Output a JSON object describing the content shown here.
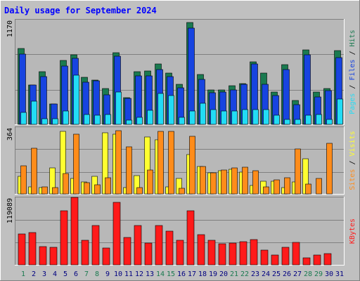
{
  "chart_data": [
    {
      "type": "bar",
      "title": "Daily usage for September 2024",
      "categories": [
        "1",
        "2",
        "3",
        "4",
        "5",
        "6",
        "7",
        "8",
        "9",
        "10",
        "11",
        "12",
        "13",
        "14",
        "15",
        "16",
        "17",
        "18",
        "19",
        "20",
        "21",
        "22",
        "23",
        "24",
        "25",
        "26",
        "27",
        "28",
        "29",
        "30",
        "31"
      ],
      "weekend_days": [
        1,
        7,
        8,
        14,
        15,
        21,
        22,
        28,
        29
      ],
      "y_max_label": "1170",
      "ylim": [
        0,
        1170
      ],
      "side_labels": [
        "Pages",
        "Files",
        "Hits"
      ],
      "series": [
        {
          "name": "Hits",
          "color": "#1a7a50",
          "values": [
            851,
            438,
            587,
            226,
            712,
            780,
            525,
            496,
            401,
            801,
            299,
            587,
            594,
            679,
            577,
            445,
            1141,
            555,
            387,
            387,
            430,
            452,
            701,
            577,
            365,
            664,
            270,
            836,
            358,
            401,
            825
          ]
        },
        {
          "name": "Files",
          "color": "#1744e0",
          "values": [
            786,
            438,
            533,
            226,
            655,
            737,
            474,
            488,
            328,
            758,
            292,
            540,
            540,
            611,
            533,
            409,
            1075,
            503,
            350,
            365,
            387,
            445,
            679,
            445,
            321,
            611,
            218,
            779,
            307,
            379,
            744
          ]
        },
        {
          "name": "Pages",
          "color": "#22dcf5",
          "values": [
            137,
            256,
            65,
            65,
            153,
            547,
            110,
            102,
            110,
            365,
            51,
            80,
            159,
            343,
            321,
            80,
            153,
            233,
            162,
            146,
            153,
            168,
            168,
            168,
            102,
            58,
            58,
            102,
            110,
            58,
            285
          ]
        }
      ]
    },
    {
      "type": "bar",
      "categories": [
        "1",
        "2",
        "3",
        "4",
        "5",
        "6",
        "7",
        "8",
        "9",
        "10",
        "11",
        "12",
        "13",
        "14",
        "15",
        "16",
        "17",
        "18",
        "19",
        "20",
        "21",
        "22",
        "23",
        "24",
        "25",
        "26",
        "27",
        "28",
        "29",
        "30",
        "31"
      ],
      "y_max_label": "364",
      "ylim": [
        0,
        364
      ],
      "side_labels": [
        "Sites",
        "Visits"
      ],
      "series": [
        {
          "name": "Visits",
          "color": "#ffff30",
          "values": [
            95,
            40,
            35,
            140,
            340,
            85,
            65,
            95,
            335,
            325,
            35,
            100,
            310,
            295,
            40,
            85,
            215,
            150,
            115,
            125,
            135,
            120,
            45,
            70,
            70,
            35,
            65,
            190,
            0,
            0,
            0
          ]
        },
        {
          "name": "Sites",
          "color": "#ff8c1a",
          "values": [
            155,
            250,
            40,
            35,
            110,
            325,
            60,
            50,
            90,
            345,
            255,
            35,
            130,
            340,
            340,
            30,
            315,
            150,
            115,
            130,
            140,
            145,
            125,
            40,
            75,
            90,
            245,
            55,
            85,
            275,
            0
          ]
        }
      ]
    },
    {
      "type": "bar",
      "categories": [
        "1",
        "2",
        "3",
        "4",
        "5",
        "6",
        "7",
        "8",
        "9",
        "10",
        "11",
        "12",
        "13",
        "14",
        "15",
        "16",
        "17",
        "18",
        "19",
        "20",
        "21",
        "22",
        "23",
        "24",
        "25",
        "26",
        "27",
        "28",
        "29",
        "30",
        "31"
      ],
      "y_max_label": "119089",
      "ylim": [
        0,
        119089
      ],
      "side_labels": [
        "KBytes"
      ],
      "series": [
        {
          "name": "KBytes",
          "color": "#ff1a1a",
          "values": [
            54000,
            57000,
            32000,
            31000,
            95000,
            119089,
            43000,
            69000,
            30000,
            110000,
            48000,
            70000,
            39000,
            69000,
            60000,
            43000,
            96000,
            53000,
            43000,
            37000,
            38000,
            41000,
            45000,
            26000,
            17000,
            31000,
            40000,
            12000,
            17000,
            20000,
            0
          ]
        }
      ]
    }
  ]
}
